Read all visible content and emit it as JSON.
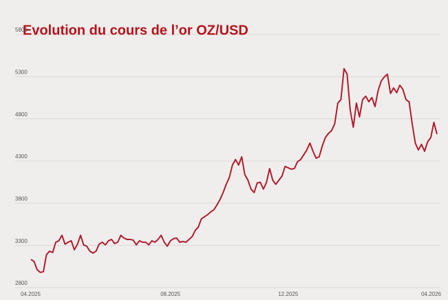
{
  "chart_data": {
    "type": "line",
    "title": "Evolution du cours de l’or OZ/USD",
    "categories": [
      "04.2025",
      null,
      null,
      null,
      null,
      null,
      null,
      null,
      null,
      null,
      null,
      null,
      null,
      null,
      null,
      null,
      null,
      null,
      null,
      null,
      null,
      null,
      null,
      null,
      null,
      null,
      null,
      null,
      null,
      null,
      null,
      null,
      null,
      null,
      null,
      null,
      null,
      null,
      null,
      null,
      null,
      null,
      null,
      null,
      null,
      "08.2025",
      null,
      null,
      null,
      null,
      null,
      null,
      null,
      null,
      null,
      null,
      null,
      null,
      null,
      null,
      null,
      null,
      null,
      null,
      null,
      null,
      null,
      null,
      null,
      null,
      null,
      null,
      null,
      null,
      null,
      null,
      null,
      null,
      null,
      null,
      null,
      null,
      null,
      "12.2025",
      null,
      null,
      null,
      null,
      null,
      null,
      null,
      null,
      null,
      null,
      null,
      null,
      null,
      null,
      null,
      null,
      null,
      null,
      null,
      null,
      null,
      null,
      null,
      null,
      null,
      null,
      null,
      null,
      null,
      null,
      null,
      null,
      null,
      null,
      null,
      null,
      null,
      null,
      null,
      null,
      null,
      null,
      null,
      null,
      null,
      null,
      null,
      "04.2026"
    ],
    "values": [
      3134,
      3110,
      3012,
      2980,
      2988,
      3190,
      3232,
      3216,
      3338,
      3355,
      3420,
      3314,
      3338,
      3355,
      3248,
      3314,
      3420,
      3306,
      3290,
      3232,
      3208,
      3232,
      3314,
      3338,
      3306,
      3355,
      3371,
      3322,
      3338,
      3420,
      3387,
      3371,
      3371,
      3363,
      3306,
      3355,
      3338,
      3338,
      3306,
      3355,
      3338,
      3371,
      3420,
      3338,
      3290,
      3355,
      3380,
      3387,
      3338,
      3346,
      3338,
      3371,
      3404,
      3477,
      3518,
      3616,
      3640,
      3665,
      3697,
      3722,
      3779,
      3844,
      3926,
      4024,
      4105,
      4252,
      4317,
      4252,
      4350,
      4138,
      4073,
      3967,
      3926,
      4040,
      4048,
      3967,
      4048,
      4211,
      4073,
      4024,
      4073,
      4122,
      4236,
      4219,
      4203,
      4211,
      4292,
      4317,
      4374,
      4431,
      4513,
      4415,
      4333,
      4350,
      4480,
      4578,
      4627,
      4660,
      4741,
      4986,
      5027,
      5394,
      5329,
      4904,
      4700,
      4986,
      4823,
      5027,
      5068,
      5002,
      5052,
      4945,
      5133,
      5247,
      5296,
      5329,
      5100,
      5166,
      5109,
      5198,
      5149,
      5027,
      5002,
      4741,
      4513,
      4431,
      4497,
      4415,
      4529,
      4578,
      4758,
      4619
    ],
    "color": "#b01c2e",
    "ylim": [
      2800,
      5800
    ],
    "yticks": [
      2800,
      3300,
      3800,
      4300,
      4800,
      5300,
      5800
    ],
    "grid": true
  }
}
